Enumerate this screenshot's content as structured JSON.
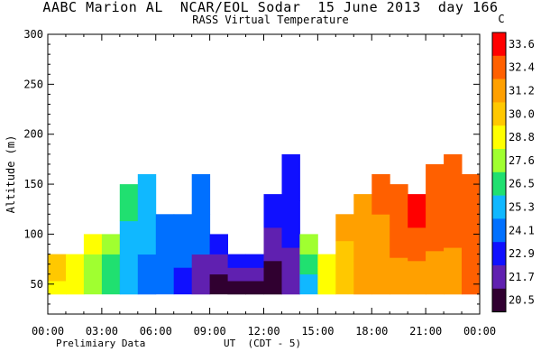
{
  "header": {
    "title": "AABC Marion AL  NCAR/EOL Sodar  15 June 2013  day 166",
    "subtitle": "RASS Virtual Temperature",
    "unit": "C"
  },
  "footer": {
    "note_left": "Prelimiary Data",
    "note_center": "UT  (CDT - 5)"
  },
  "chart_data": {
    "type": "heatmap",
    "title": "AABC Marion AL  NCAR/EOL Sodar  15 June 2013  day 166",
    "subtitle": "RASS Virtual Temperature",
    "xlabel": "UT  (CDT - 5)",
    "ylabel": "Altitude (m)",
    "xlim": [
      0,
      24
    ],
    "ylim": [
      20,
      300
    ],
    "x_ticks": [
      "00:00",
      "03:00",
      "06:00",
      "09:00",
      "12:00",
      "15:00",
      "18:00",
      "21:00",
      "00:00"
    ],
    "y_ticks": [
      50,
      100,
      150,
      200,
      250,
      300
    ],
    "colorbar": {
      "unit": "C",
      "labels": [
        "33.6",
        "32.4",
        "31.2",
        "30.0",
        "28.8",
        "27.6",
        "26.5",
        "25.3",
        "24.1",
        "22.9",
        "21.7",
        "20.5"
      ],
      "colors": [
        "#ff0000",
        "#ff6000",
        "#ffa000",
        "#ffc800",
        "#ffff00",
        "#a0ff30",
        "#20e070",
        "#10b8ff",
        "#0070ff",
        "#1010ff",
        "#6020b0",
        "#300030"
      ]
    },
    "temperature_by_hour": [
      {
        "time_ut": 0,
        "top_m": 80,
        "temps_c": [
          29.3,
          29.5,
          29.7
        ]
      },
      {
        "time_ut": 1,
        "top_m": 80,
        "temps_c": [
          28.9,
          29.0,
          29.1
        ]
      },
      {
        "time_ut": 2,
        "top_m": 100,
        "temps_c": [
          27.8,
          28.0,
          28.2
        ]
      },
      {
        "time_ut": 3,
        "top_m": 100,
        "temps_c": [
          26.5,
          26.8,
          27.0
        ]
      },
      {
        "time_ut": 4,
        "top_m": 150,
        "temps_c": [
          25.5,
          25.7,
          26.0
        ]
      },
      {
        "time_ut": 5,
        "top_m": 160,
        "temps_c": [
          24.6,
          25.0,
          25.5
        ]
      },
      {
        "time_ut": 6,
        "top_m": 120,
        "temps_c": [
          23.7,
          24.2,
          24.6
        ]
      },
      {
        "time_ut": 7,
        "top_m": 120,
        "temps_c": [
          23.2,
          23.8,
          24.2
        ]
      },
      {
        "time_ut": 8,
        "top_m": 160,
        "temps_c": [
          22.1,
          23.5,
          24.0
        ]
      },
      {
        "time_ut": 9,
        "top_m": 100,
        "temps_c": [
          20.8,
          22.2,
          23.0
        ]
      },
      {
        "time_ut": 10,
        "top_m": 80,
        "temps_c": [
          20.6,
          21.6,
          22.6
        ]
      },
      {
        "time_ut": 11,
        "top_m": 80,
        "temps_c": [
          21.0,
          21.8,
          22.5
        ]
      },
      {
        "time_ut": 12,
        "top_m": 140,
        "temps_c": [
          20.9,
          22.0,
          23.0
        ]
      },
      {
        "time_ut": 13,
        "top_m": 180,
        "temps_c": [
          22.0,
          22.5,
          23.3
        ]
      },
      {
        "time_ut": 14,
        "top_m": 100,
        "temps_c": [
          25.0,
          26.0,
          27.0
        ]
      },
      {
        "time_ut": 15,
        "top_m": 80,
        "temps_c": [
          28.9,
          29.1,
          29.3
        ]
      },
      {
        "time_ut": 16,
        "top_m": 120,
        "temps_c": [
          30.0,
          30.4,
          30.8
        ]
      },
      {
        "time_ut": 17,
        "top_m": 140,
        "temps_c": [
          31.0,
          31.3,
          31.6
        ]
      },
      {
        "time_ut": 18,
        "top_m": 160,
        "temps_c": [
          31.3,
          31.7,
          32.2
        ]
      },
      {
        "time_ut": 19,
        "top_m": 150,
        "temps_c": [
          31.4,
          31.8,
          32.3
        ]
      },
      {
        "time_ut": 20,
        "top_m": 140,
        "temps_c": [
          31.6,
          32.2,
          33.0
        ]
      },
      {
        "time_ut": 21,
        "top_m": 170,
        "temps_c": [
          31.5,
          32.0,
          32.8
        ]
      },
      {
        "time_ut": 22,
        "top_m": 180,
        "temps_c": [
          31.3,
          32.0,
          32.6
        ]
      },
      {
        "time_ut": 23,
        "top_m": 160,
        "temps_c": [
          32.0,
          32.4,
          32.8
        ]
      }
    ]
  }
}
